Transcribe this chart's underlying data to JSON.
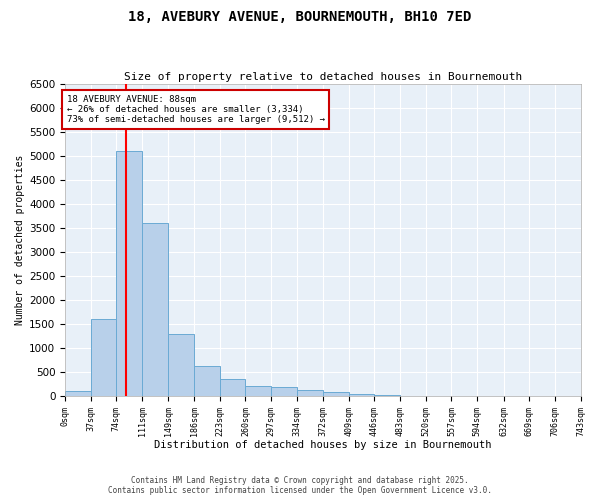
{
  "title": "18, AVEBURY AVENUE, BOURNEMOUTH, BH10 7ED",
  "subtitle": "Size of property relative to detached houses in Bournemouth",
  "xlabel": "Distribution of detached houses by size in Bournemouth",
  "ylabel": "Number of detached properties",
  "bar_values": [
    100,
    1600,
    5100,
    3600,
    1300,
    620,
    350,
    220,
    190,
    130,
    80,
    40,
    20,
    10,
    5,
    3,
    2,
    1,
    0,
    0
  ],
  "bin_edges": [
    0,
    37,
    74,
    111,
    149,
    186,
    223,
    260,
    297,
    334,
    372,
    409,
    446,
    483,
    520,
    557,
    594,
    632,
    669,
    706,
    743
  ],
  "bar_color": "#b8d0ea",
  "bar_edge_color": "#6aaad4",
  "background_color": "#e8f0f8",
  "grid_color": "#ffffff",
  "red_line_x": 88,
  "annotation_text": "18 AVEBURY AVENUE: 88sqm\n← 26% of detached houses are smaller (3,334)\n73% of semi-detached houses are larger (9,512) →",
  "annotation_box_color": "#ffffff",
  "annotation_border_color": "#cc0000",
  "ylim": [
    0,
    6500
  ],
  "yticks": [
    0,
    500,
    1000,
    1500,
    2000,
    2500,
    3000,
    3500,
    4000,
    4500,
    5000,
    5500,
    6000,
    6500
  ],
  "footer_line1": "Contains HM Land Registry data © Crown copyright and database right 2025.",
  "footer_line2": "Contains public sector information licensed under the Open Government Licence v3.0."
}
